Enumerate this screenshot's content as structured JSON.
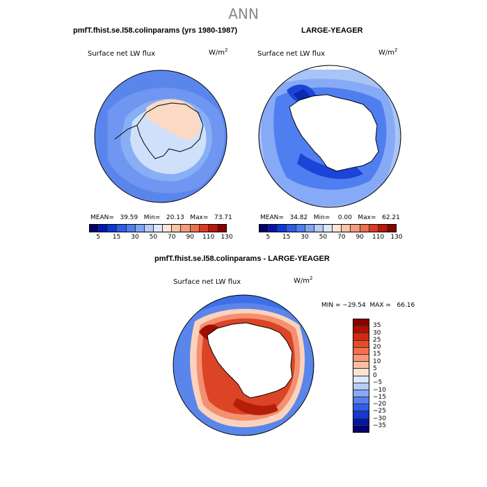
{
  "figure": {
    "title": "ANN",
    "panels": [
      {
        "title": "pmfT.fhist.se.l58.colinparams (yrs 1980-1987)",
        "variable": "Surface net LW flux",
        "units_base": "W/m",
        "units_exp": "2",
        "stats": "MEAN=   39.59   Min=   20.13   Max=   73.71",
        "colorbar": {
          "colors": [
            "#08006e",
            "#0016b4",
            "#0a3ad6",
            "#2a5ee8",
            "#4f7ef0",
            "#7fa6f6",
            "#b6ccfa",
            "#dce8fd",
            "#fde6d6",
            "#fbc4a6",
            "#f79c7a",
            "#ee6e4c",
            "#de3a22",
            "#be1608",
            "#8a0000"
          ],
          "tick_labels": [
            "5",
            "15",
            "30",
            "50",
            "70",
            "90",
            "110",
            "130"
          ]
        }
      },
      {
        "title": "LARGE-YEAGER",
        "variable": "Surface net LW flux",
        "units_base": "W/m",
        "units_exp": "2",
        "stats": "MEAN=   34.82   Min=    0.00   Max=   62.21",
        "colorbar": {
          "colors": [
            "#08006e",
            "#0016b4",
            "#0a3ad6",
            "#2a5ee8",
            "#4f7ef0",
            "#7fa6f6",
            "#b6ccfa",
            "#dce8fd",
            "#fde6d6",
            "#fbc4a6",
            "#f79c7a",
            "#ee6e4c",
            "#de3a22",
            "#be1608",
            "#8a0000"
          ],
          "tick_labels": [
            "5",
            "15",
            "30",
            "50",
            "70",
            "90",
            "110",
            "130"
          ]
        }
      },
      {
        "title": "pmfT.fhist.se.l58.colinparams - LARGE-YEAGER",
        "variable": "Surface net LW flux",
        "units_base": "W/m",
        "units_exp": "2",
        "stats": "MIN = −29.54  MAX =   66.16",
        "colorbar": {
          "colors": [
            "#8a0000",
            "#b01004",
            "#d02a12",
            "#e84a2a",
            "#f4704e",
            "#f89878",
            "#fbbfa2",
            "#fde2d2",
            "#dce8fd",
            "#b6ccfa",
            "#86aaf6",
            "#5680ee",
            "#2f5ee6",
            "#1438d0",
            "#0018a8",
            "#06006a"
          ],
          "tick_labels": [
            "35",
            "30",
            "25",
            "20",
            "15",
            "10",
            "5",
            "0",
            "−5",
            "−10",
            "−15",
            "−20",
            "−25",
            "−30",
            "−35"
          ]
        }
      }
    ]
  },
  "colors": {
    "ocean_light_1": "#5a86ec",
    "ocean_light_2": "#88aef4",
    "ocean_ice": "#cfe0fb",
    "ocean_peach": "#fbd9c4",
    "yeager_base": "#a9c4f7",
    "yeager_deep": "#1a45d8",
    "diff_base": "#3f6fe8",
    "diff_red_1": "#fbd3bd",
    "diff_red_2": "#f39070",
    "diff_red_3": "#dc4426",
    "diff_red_4": "#9e0d02"
  }
}
